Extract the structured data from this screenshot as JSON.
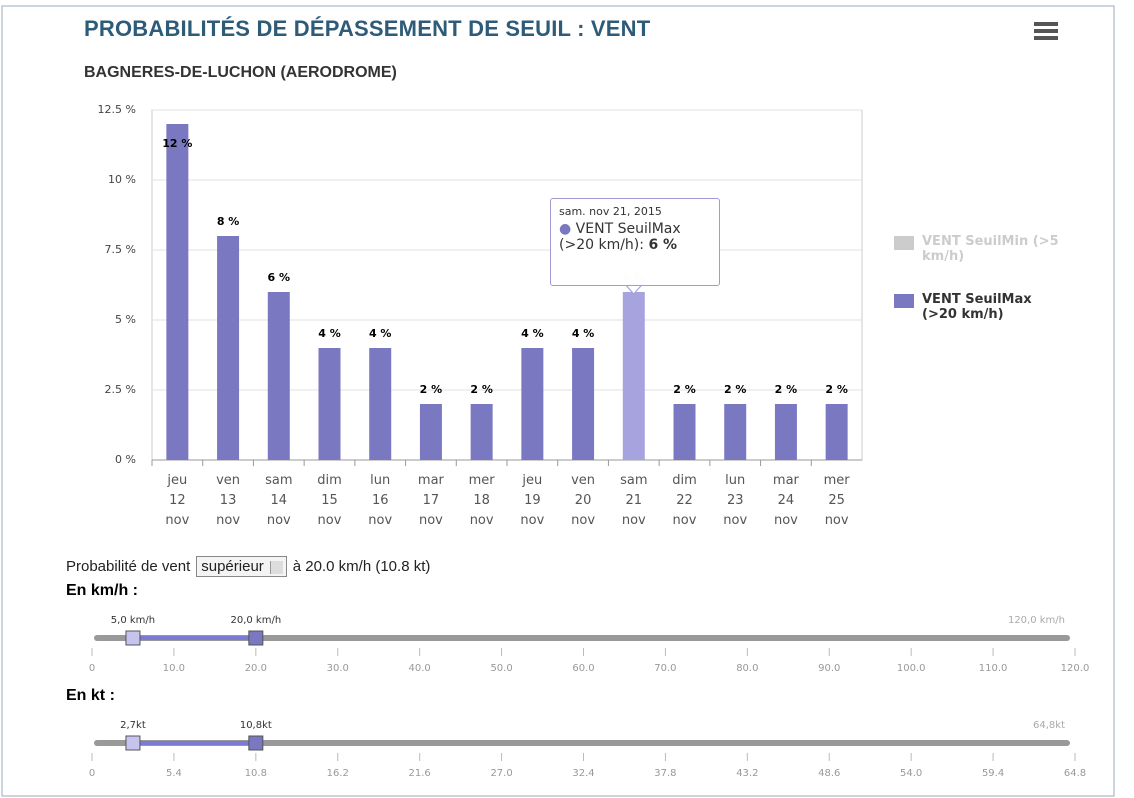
{
  "chart_data": {
    "type": "bar",
    "title": "PROBABILITÉS DE DÉPASSEMENT DE SEUIL : VENT",
    "subtitle": "BAGNERES-DE-LUCHON (AERODROME)",
    "categories": [
      "jeu 12 nov",
      "ven 13 nov",
      "sam 14 nov",
      "dim 15 nov",
      "lun 16 nov",
      "mar 17 nov",
      "mer 18 nov",
      "jeu 19 nov",
      "ven 20 nov",
      "sam 21 nov",
      "dim 22 nov",
      "lun 23 nov",
      "mar 24 nov",
      "mer 25 nov"
    ],
    "series": [
      {
        "name": "VENT SeuilMin (>5 km/h)",
        "color": "#cccccc",
        "visible": false
      },
      {
        "name": "VENT SeuilMax (>20 km/h)",
        "color": "#7b78c2",
        "highlight_color": "#a7a3df",
        "values": [
          12,
          8,
          6,
          4,
          4,
          2,
          2,
          4,
          4,
          6,
          2,
          2,
          2,
          2
        ],
        "value_labels": [
          "12 %",
          "8 %",
          "6 %",
          "4 %",
          "4 %",
          "2 %",
          "2 %",
          "4 %",
          "4 %",
          "6 %",
          "2 %",
          "2 %",
          "2 %",
          "2 %"
        ]
      }
    ],
    "ylim": [
      0,
      12.5
    ],
    "yticks": [
      {
        "value": 0,
        "label": "0 %"
      },
      {
        "value": 2.5,
        "label": "2.5 %"
      },
      {
        "value": 5,
        "label": "5 %"
      },
      {
        "value": 7.5,
        "label": "7.5 %"
      },
      {
        "value": 10,
        "label": "10 %"
      },
      {
        "value": 12.5,
        "label": "12.5 %"
      }
    ],
    "grid": true,
    "legend": "right",
    "tooltip": {
      "index": 9,
      "header": "sam. nov 21, 2015",
      "label": "VENT SeuilMax (>20 km/h):"
    }
  },
  "controls": {
    "prefix": "Probabilité de vent",
    "select": "supérieur",
    "suffix": "à 20.0 km/h (10.8 kt)"
  },
  "sliders": [
    {
      "title": "En km/h :",
      "range": [
        0,
        120
      ],
      "max_label": "120,0 km/h",
      "handles": [
        {
          "value": 5,
          "label": "5,0 km/h"
        },
        {
          "value": 20,
          "label": "20,0 km/h"
        }
      ],
      "ticks": [
        0,
        {
          "value": 10,
          "label": "10.0"
        },
        {
          "value": 20,
          "label": "20.0"
        },
        {
          "value": 30,
          "label": "30.0"
        },
        {
          "value": 40,
          "label": "40.0"
        },
        {
          "value": 50,
          "label": "50.0"
        },
        {
          "value": 60,
          "label": "60.0"
        },
        {
          "value": 70,
          "label": "70.0"
        },
        {
          "value": 80,
          "label": "80.0"
        },
        {
          "value": 90,
          "label": "90.0"
        },
        {
          "value": 100,
          "label": "100.0"
        },
        {
          "value": 110,
          "label": "110.0"
        },
        {
          "value": 120,
          "label": "120.0"
        }
      ]
    },
    {
      "title": "En kt :",
      "range": [
        0,
        64.8
      ],
      "max_label": "64,8kt",
      "handles": [
        {
          "value": 2.7,
          "label": "2,7kt"
        },
        {
          "value": 10.8,
          "label": "10,8kt"
        }
      ],
      "ticks": [
        0,
        5.4,
        10.8,
        16.2,
        21.6,
        {
          "value": 27,
          "label": "27.0"
        },
        32.4,
        37.8,
        43.2,
        48.6,
        {
          "value": 54,
          "label": "54.0"
        },
        59.4,
        64.8
      ]
    }
  ]
}
